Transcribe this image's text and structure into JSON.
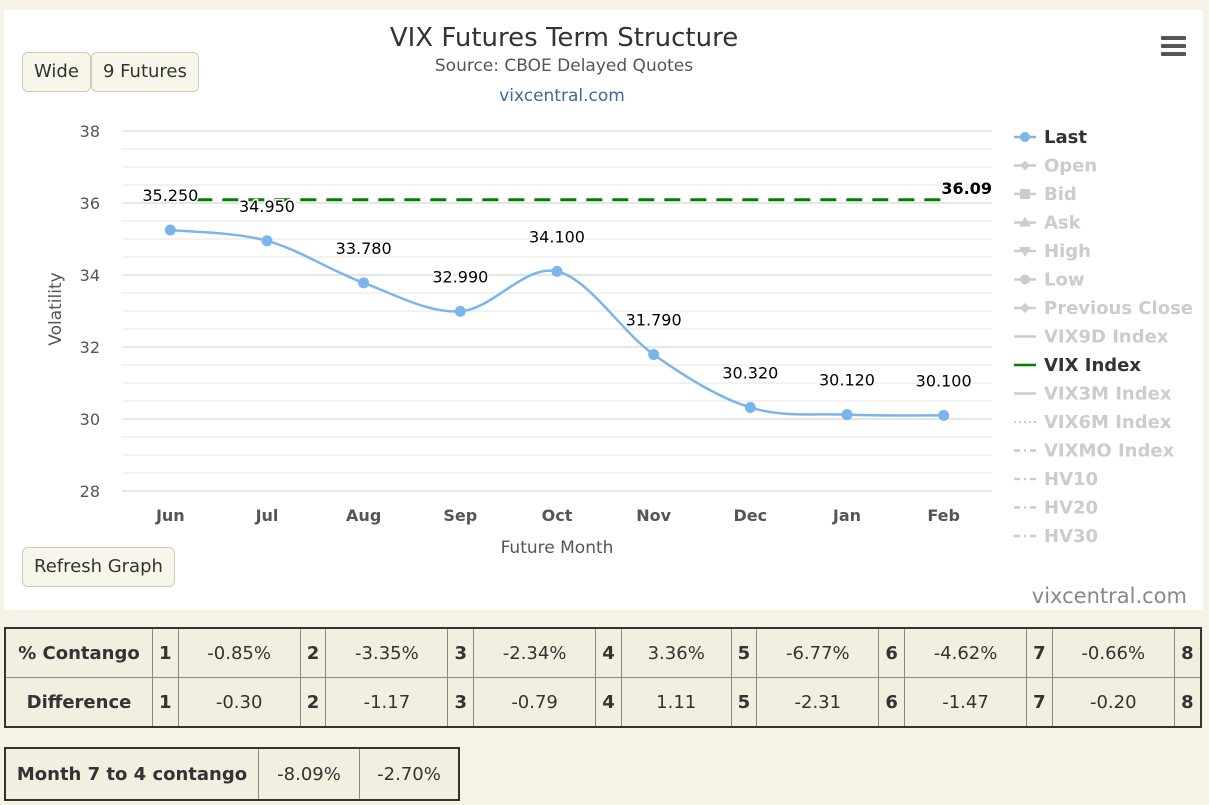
{
  "header": {
    "title": "VIX Futures Term Structure",
    "subtitle": "Source: CBOE Delayed Quotes",
    "link": "vixcentral.com"
  },
  "buttons": {
    "wide": "Wide",
    "futures": "9 Futures",
    "refresh": "Refresh Graph"
  },
  "watermark": "vixcentral.com",
  "colors": {
    "last": "#7cb5ec",
    "vix": "#008000",
    "legend_inactive": "#cccccc",
    "grid": "#e6e6e6"
  },
  "legend": [
    {
      "label": "Last",
      "active": true,
      "marker": "circle",
      "line": "solid"
    },
    {
      "label": "Open",
      "active": false,
      "marker": "diamond",
      "line": "solid"
    },
    {
      "label": "Bid",
      "active": false,
      "marker": "square",
      "line": "solid"
    },
    {
      "label": "Ask",
      "active": false,
      "marker": "triangle",
      "line": "solid"
    },
    {
      "label": "High",
      "active": false,
      "marker": "triangle-down",
      "line": "solid"
    },
    {
      "label": "Low",
      "active": false,
      "marker": "circle",
      "line": "solid"
    },
    {
      "label": "Previous Close",
      "active": false,
      "marker": "diamond",
      "line": "solid"
    },
    {
      "label": "VIX9D Index",
      "active": false,
      "marker": "none",
      "line": "solid"
    },
    {
      "label": "VIX Index",
      "active": true,
      "marker": "none",
      "line": "solid"
    },
    {
      "label": "VIX3M Index",
      "active": false,
      "marker": "none",
      "line": "solid"
    },
    {
      "label": "VIX6M Index",
      "active": false,
      "marker": "none",
      "line": "dotted"
    },
    {
      "label": "VIXMO Index",
      "active": false,
      "marker": "none",
      "line": "dashdot"
    },
    {
      "label": "HV10",
      "active": false,
      "marker": "none",
      "line": "dashdot"
    },
    {
      "label": "HV20",
      "active": false,
      "marker": "none",
      "line": "dashdot"
    },
    {
      "label": "HV30",
      "active": false,
      "marker": "none",
      "line": "dashdot"
    }
  ],
  "chart_data": {
    "type": "line",
    "title": "VIX Futures Term Structure",
    "subtitle": "Source: CBOE Delayed Quotes",
    "xlabel": "Future Month",
    "ylabel": "Volatility",
    "ylim": [
      28,
      38
    ],
    "yticks": [
      28,
      30,
      32,
      34,
      36,
      38
    ],
    "grid": true,
    "legend_position": "right",
    "categories": [
      "Jun",
      "Jul",
      "Aug",
      "Sep",
      "Oct",
      "Nov",
      "Dec",
      "Jan",
      "Feb"
    ],
    "series": [
      {
        "name": "Last",
        "values": [
          35.25,
          34.95,
          33.78,
          32.99,
          34.1,
          31.79,
          30.32,
          30.12,
          30.1
        ],
        "labels": [
          "35.250",
          "34.950",
          "33.780",
          "32.990",
          "34.100",
          "31.790",
          "30.320",
          "30.120",
          "30.100"
        ]
      },
      {
        "name": "VIX Index",
        "value": 36.09,
        "label": "36.09"
      }
    ]
  },
  "contango_table": {
    "rows": [
      {
        "label": "% Contango",
        "cells": [
          {
            "n": "1",
            "v": "-0.85%"
          },
          {
            "n": "2",
            "v": "-3.35%"
          },
          {
            "n": "3",
            "v": "-2.34%"
          },
          {
            "n": "4",
            "v": "3.36%"
          },
          {
            "n": "5",
            "v": "-6.77%"
          },
          {
            "n": "6",
            "v": "-4.62%"
          },
          {
            "n": "7",
            "v": "-0.66%"
          }
        ],
        "last": "8"
      },
      {
        "label": "Difference",
        "cells": [
          {
            "n": "1",
            "v": "-0.30"
          },
          {
            "n": "2",
            "v": "-1.17"
          },
          {
            "n": "3",
            "v": "-0.79"
          },
          {
            "n": "4",
            "v": "1.11"
          },
          {
            "n": "5",
            "v": "-2.31"
          },
          {
            "n": "6",
            "v": "-1.47"
          },
          {
            "n": "7",
            "v": "-0.20"
          }
        ],
        "last": "8"
      }
    ]
  },
  "month_table": {
    "label": "Month 7 to 4 contango",
    "v1": "-8.09%",
    "v2": "-2.70%"
  }
}
